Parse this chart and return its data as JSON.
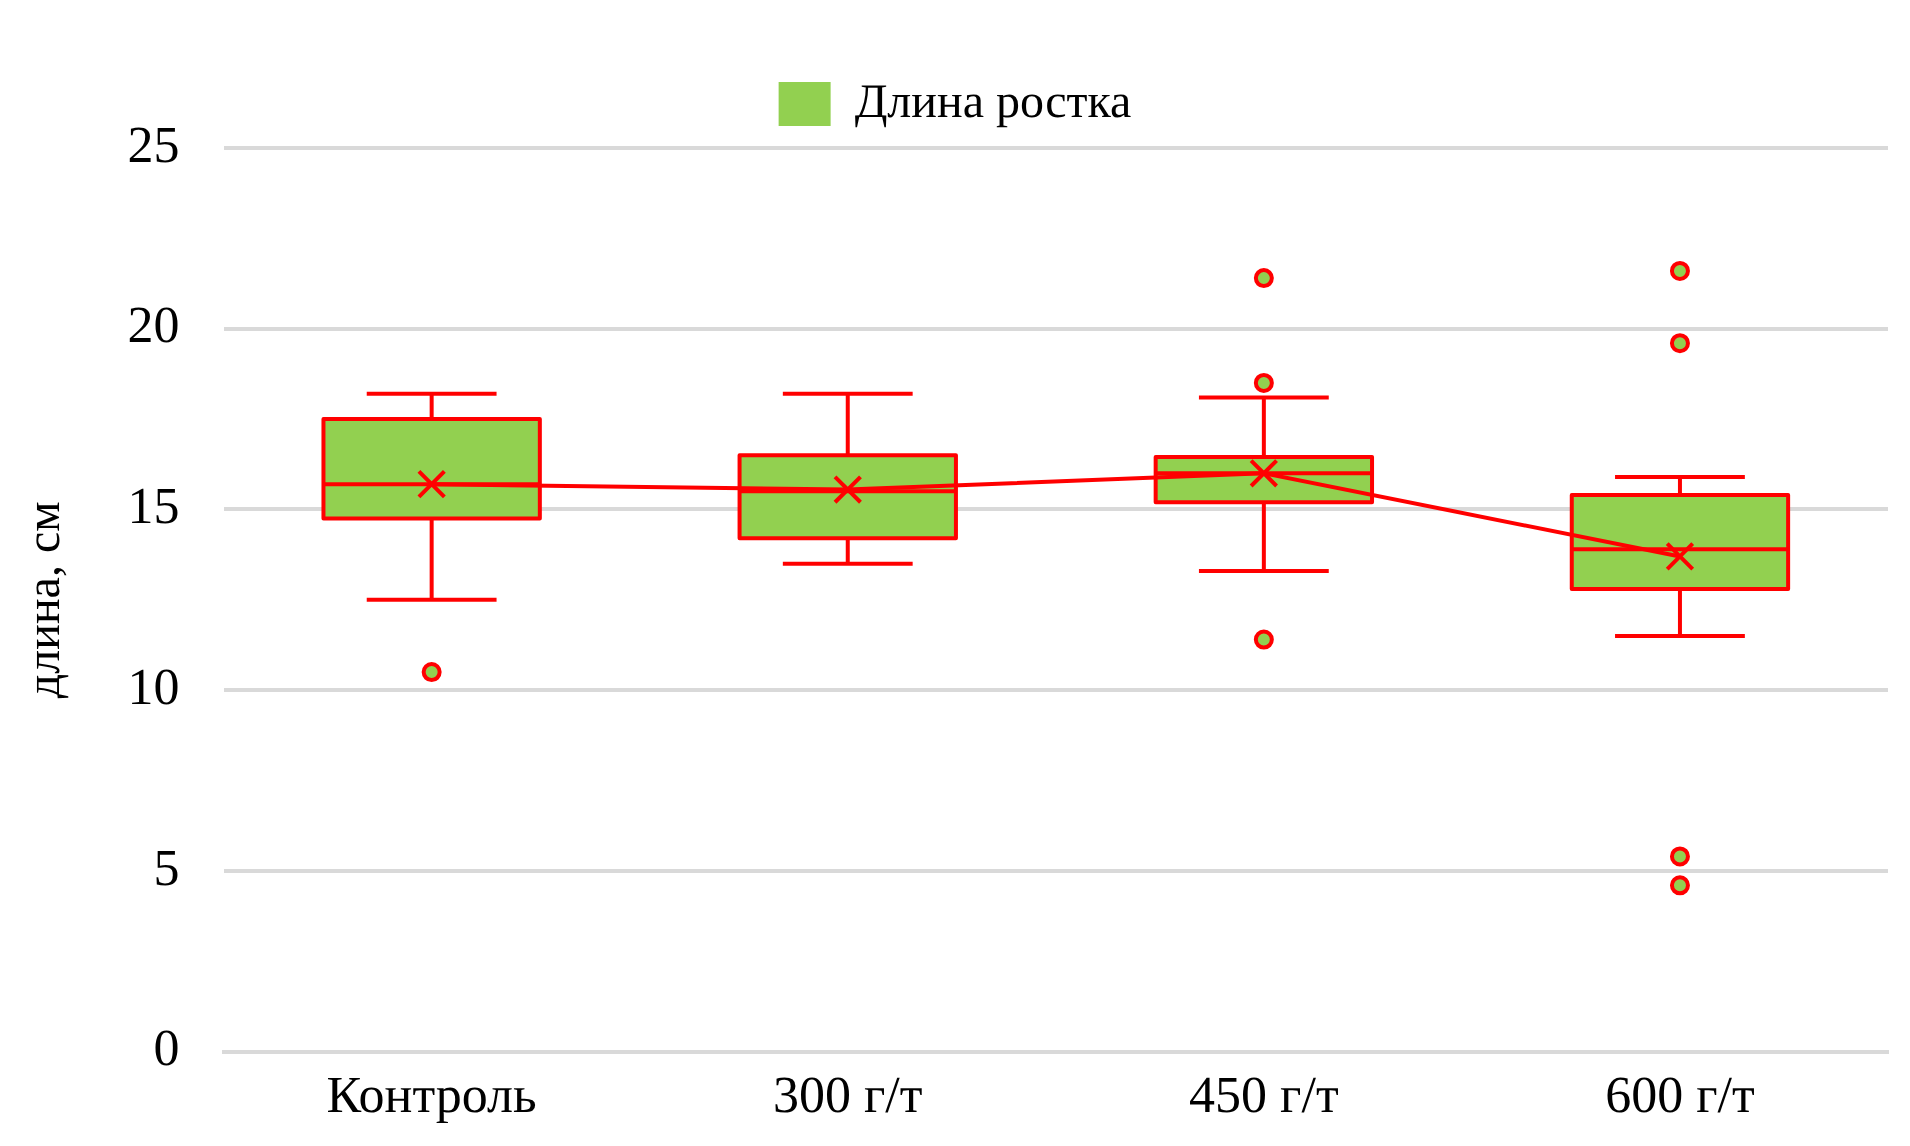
{
  "chart_data": {
    "type": "box",
    "ylabel": "длина, см",
    "categories": [
      "Контроль",
      "300 г/т",
      "450 г/т",
      "600 г/т"
    ],
    "series": [
      {
        "name": "Длина ростка",
        "color": "#92d050",
        "boxes": [
          {
            "low": 12.5,
            "q1": 14.75,
            "median": 15.7,
            "q3": 17.5,
            "high": 18.2,
            "outliers": [
              10.5
            ]
          },
          {
            "low": 13.5,
            "q1": 14.2,
            "median": 15.5,
            "q3": 16.5,
            "high": 18.2
          },
          {
            "low": 13.3,
            "q1": 15.2,
            "median": 16.0,
            "q3": 16.45,
            "high": 18.1,
            "outliers": [
              21.4,
              18.5,
              11.4
            ]
          },
          {
            "low": 11.5,
            "q1": 12.8,
            "median": 13.9,
            "q3": 15.4,
            "high": 15.9,
            "outliers": [
              21.6,
              19.6,
              5.4,
              4.6
            ]
          }
        ]
      },
      {
        "type": "line",
        "color": "#ff0000",
        "marker": "cross",
        "values": [
          15.7,
          15.55,
          16.0,
          13.7
        ]
      }
    ],
    "ylim": [
      0,
      25
    ],
    "yticks": [
      0,
      5,
      10,
      15,
      20,
      25
    ],
    "grid": "y",
    "legend": "top"
  }
}
